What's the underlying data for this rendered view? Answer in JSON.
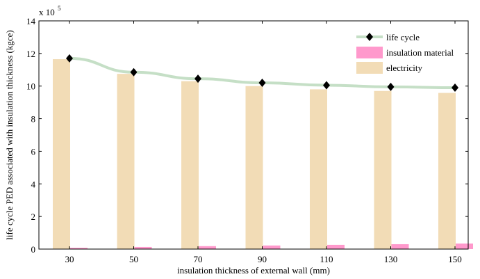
{
  "chart_data": {
    "type": "bar",
    "xlabel": "insulation thickness of external wall (mm)",
    "ylabel": "life cycle PED associated with insulation thickness (kgce)",
    "multiplier_base": "x 10",
    "multiplier_exp": "5",
    "categories": [
      "30",
      "50",
      "70",
      "90",
      "110",
      "130",
      "150"
    ],
    "ylim": [
      0,
      14
    ],
    "yticks": [
      "0",
      "2",
      "4",
      "6",
      "8",
      "10",
      "12",
      "14"
    ],
    "legend_position": "top-right",
    "series": [
      {
        "name": "life cycle",
        "kind": "line",
        "color": "#c5dfc6",
        "marker": "diamond",
        "values": [
          11.7,
          10.85,
          10.45,
          10.2,
          10.05,
          9.95,
          9.9
        ]
      },
      {
        "name": "insulation material",
        "kind": "bar",
        "color": "#ff99cc",
        "values": [
          0.08,
          0.13,
          0.18,
          0.22,
          0.26,
          0.3,
          0.34
        ]
      },
      {
        "name": "electricity",
        "kind": "bar",
        "color": "#f2dcb6",
        "values": [
          11.65,
          10.75,
          10.3,
          10.0,
          9.8,
          9.7,
          9.58
        ]
      }
    ]
  }
}
